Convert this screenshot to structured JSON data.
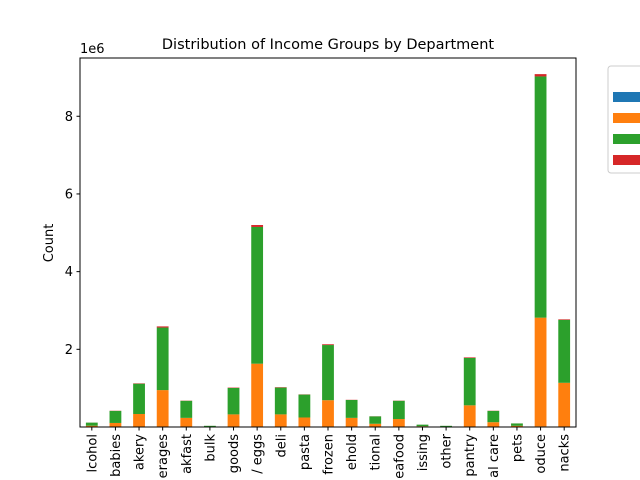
{
  "chart_data": {
    "type": "bar",
    "stacked": true,
    "title": "Distribution of Income Groups by Department",
    "ylabel": "Count",
    "xlabel": "",
    "offset_text": "1e6",
    "ylim": [
      0,
      9500000
    ],
    "yticks": [
      2000000,
      4000000,
      6000000,
      8000000
    ],
    "ytick_labels": [
      "2",
      "4",
      "6",
      "8"
    ],
    "legend_position": "upper-right outside",
    "categories": [
      "alcohol",
      "babies",
      "bakery",
      "beverages",
      "breakfast",
      "bulk",
      "canned goods",
      "dairy eggs",
      "deli",
      "dry goods pasta",
      "frozen",
      "household",
      "international",
      "meat seafood",
      "missing",
      "other",
      "pantry",
      "personal care",
      "pets",
      "produce",
      "snacks"
    ],
    "visible_tick_labels": [
      "lcohol",
      "babies",
      "akery",
      "erages",
      "akfast",
      "bulk",
      "goods",
      "/ eggs",
      "deli",
      "pasta",
      "frozen",
      "ehold",
      "tional",
      "eafood",
      "issing",
      "other",
      "pantry",
      "al care",
      "pets",
      "oduce",
      "nacks"
    ],
    "series": [
      {
        "color": "#1f77b4",
        "values": [
          3000,
          4000,
          5000,
          10000,
          5000,
          500,
          5000,
          10000,
          5000,
          5000,
          10000,
          5000,
          3000,
          5000,
          500,
          300,
          8000,
          4000,
          1000,
          15000,
          8000
        ]
      },
      {
        "color": "#ff7f0e",
        "values": [
          30000,
          100000,
          330000,
          940000,
          230000,
          10000,
          320000,
          1620000,
          320000,
          240000,
          680000,
          230000,
          80000,
          200000,
          20000,
          10000,
          550000,
          120000,
          30000,
          2800000,
          1130000
        ]
      },
      {
        "color": "#2ca02c",
        "values": [
          80000,
          310000,
          780000,
          1610000,
          440000,
          20000,
          680000,
          3520000,
          690000,
          590000,
          1420000,
          460000,
          190000,
          470000,
          40000,
          20000,
          1220000,
          290000,
          60000,
          6210000,
          1620000
        ]
      },
      {
        "color": "#d62728",
        "values": [
          1000,
          5000,
          10000,
          30000,
          5000,
          500,
          10000,
          50000,
          10000,
          5000,
          20000,
          5000,
          3000,
          5000,
          500,
          300,
          15000,
          5000,
          1000,
          60000,
          15000
        ]
      }
    ]
  }
}
